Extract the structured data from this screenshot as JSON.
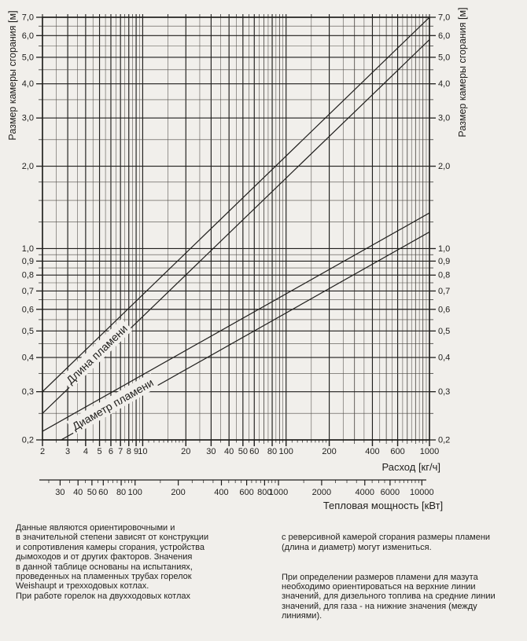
{
  "page": {
    "background": "#f1efeb",
    "ink": "#1f1e1c",
    "grid_minor_color": "#4e4a45"
  },
  "chart_data": {
    "type": "line",
    "x_axis": {
      "title": "Расход [кг/ч]",
      "scale": "log",
      "min": 2,
      "max": 1000,
      "labeled_ticks": [
        2,
        3,
        4,
        5,
        6,
        7,
        8,
        9,
        10,
        20,
        30,
        40,
        50,
        60,
        80,
        100,
        200,
        400,
        600,
        1000
      ]
    },
    "y_axis": {
      "title": "Размер камеры сгорания [м]",
      "scale": "log",
      "min": 0.2,
      "max": 7.0,
      "labeled_ticks": [
        0.2,
        0.3,
        0.4,
        0.5,
        0.6,
        0.7,
        0.8,
        0.9,
        1.0,
        2.0,
        3.0,
        4.0,
        5.0,
        6.0,
        7.0
      ],
      "mirrored_right": true
    },
    "secondary_x_axis": {
      "title": "Тепловая мощность [кВт]",
      "scale": "log",
      "kw_per_kgh": 11.3,
      "labeled_ticks": [
        30,
        40,
        50,
        60,
        80,
        100,
        200,
        400,
        600,
        800,
        1000,
        2000,
        4000,
        6000,
        10000
      ]
    },
    "series": [
      {
        "name": "flame-length-upper",
        "group": "Длина пламени",
        "points": [
          [
            2,
            0.3
          ],
          [
            1000,
            7.0
          ]
        ]
      },
      {
        "name": "flame-length-lower",
        "group": "Длина пламени",
        "points": [
          [
            2,
            0.25
          ],
          [
            1000,
            5.8
          ]
        ]
      },
      {
        "name": "flame-diameter-upper",
        "group": "Диаметр пламени",
        "points": [
          [
            2,
            0.215
          ],
          [
            1000,
            1.35
          ]
        ]
      },
      {
        "name": "flame-diameter-lower",
        "group": "Диаметр пламени",
        "points": [
          [
            2,
            0.183
          ],
          [
            1000,
            1.15
          ]
        ]
      }
    ],
    "annotations": [
      {
        "text": "Длина пламени",
        "x": 4.8,
        "y": 0.41,
        "angle_deg": -44
      },
      {
        "text": "Диаметр пламени",
        "x": 6.2,
        "y": 0.269,
        "angle_deg": -30
      }
    ]
  },
  "notes": {
    "left_column": "Данные являются ориентировочными и\nв значительной степени зависят от конструкции\nи сопротивления камеры сгорания, устройства\nдымоходов и от других факторов. Значения\nв данной таблице основаны на испытаниях,\nпроведенных на пламенных трубах горелок\nWeishaupt и трехходовых котлах.\nПри работе горелок на двухходовых котлах",
    "right_column_p1": "с реверсивной камерой сгорания размеры пламени\n(длина и диаметр) могут измениться.",
    "right_column_p2": "При определении размеров пламени для мазута\nнеобходимо ориентироваться на верхние линии\nзначений, для дизельного топлива на средние линии\nзначений, для газа - на нижние значения (между\nлиниями)."
  }
}
